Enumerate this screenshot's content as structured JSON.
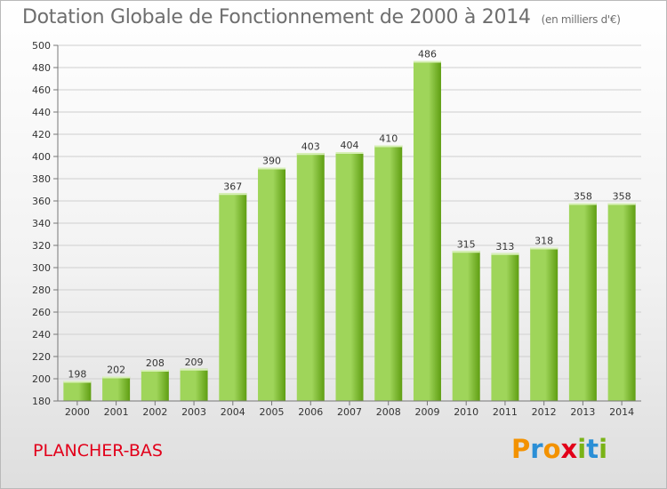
{
  "title": "Dotation Globale de Fonctionnement de 2000 à 2014",
  "unit_note": "(en milliers d'€)",
  "commune": "PLANCHER-BAS",
  "logo": {
    "text": "Proxiti",
    "colors": [
      "#f39200",
      "#2b8fd6",
      "#f39200",
      "#e2001a",
      "#7ab317",
      "#2b8fd6",
      "#7ab317"
    ]
  },
  "colors": {
    "title": "#6e6e6e",
    "commune": "#e2001a",
    "bar_light": "#9fd55a",
    "bar_dark": "#5f9e12"
  },
  "chart_data": {
    "type": "bar",
    "title": "Dotation Globale de Fonctionnement de 2000 à 2014",
    "ylabel": "(en milliers d'€)",
    "categories": [
      "2000",
      "2001",
      "2002",
      "2003",
      "2004",
      "2005",
      "2006",
      "2007",
      "2008",
      "2009",
      "2010",
      "2011",
      "2012",
      "2013",
      "2014"
    ],
    "values": [
      198,
      202,
      208,
      209,
      367,
      390,
      403,
      404,
      410,
      486,
      315,
      313,
      318,
      358,
      358
    ],
    "ylim": [
      180,
      500
    ],
    "yticks": [
      180,
      200,
      220,
      240,
      260,
      280,
      300,
      320,
      340,
      360,
      380,
      400,
      420,
      440,
      460,
      480,
      500
    ],
    "grid": true,
    "data_labels": true
  }
}
